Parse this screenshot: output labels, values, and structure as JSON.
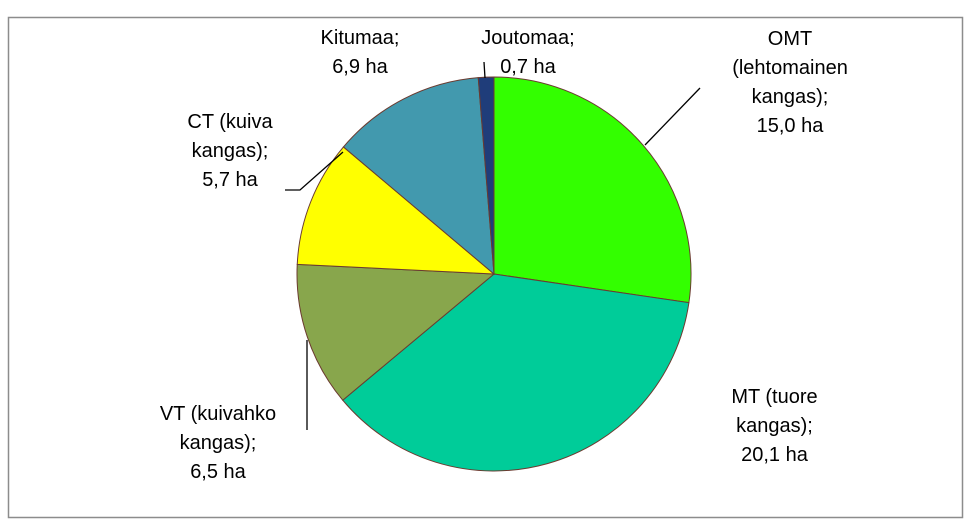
{
  "chart_data": {
    "type": "pie",
    "categories": [
      "OMT (lehtomainen kangas)",
      "MT (tuore kangas)",
      "VT (kuivahko kangas)",
      "CT (kuiva kangas)",
      "Kitumaa",
      "Joutomaa"
    ],
    "values": [
      15.0,
      20.1,
      6.5,
      5.7,
      6.9,
      0.7
    ],
    "value_labels": [
      "15,0 ha",
      "20,1 ha",
      "6,5 ha",
      "5,7 ha",
      "6,9 ha",
      "0,7 ha"
    ],
    "label_separator": ";",
    "colors": [
      "#33ff00",
      "#00cc99",
      "#88a64c",
      "#ffff00",
      "#4299ae",
      "#1f3d7a"
    ]
  }
}
